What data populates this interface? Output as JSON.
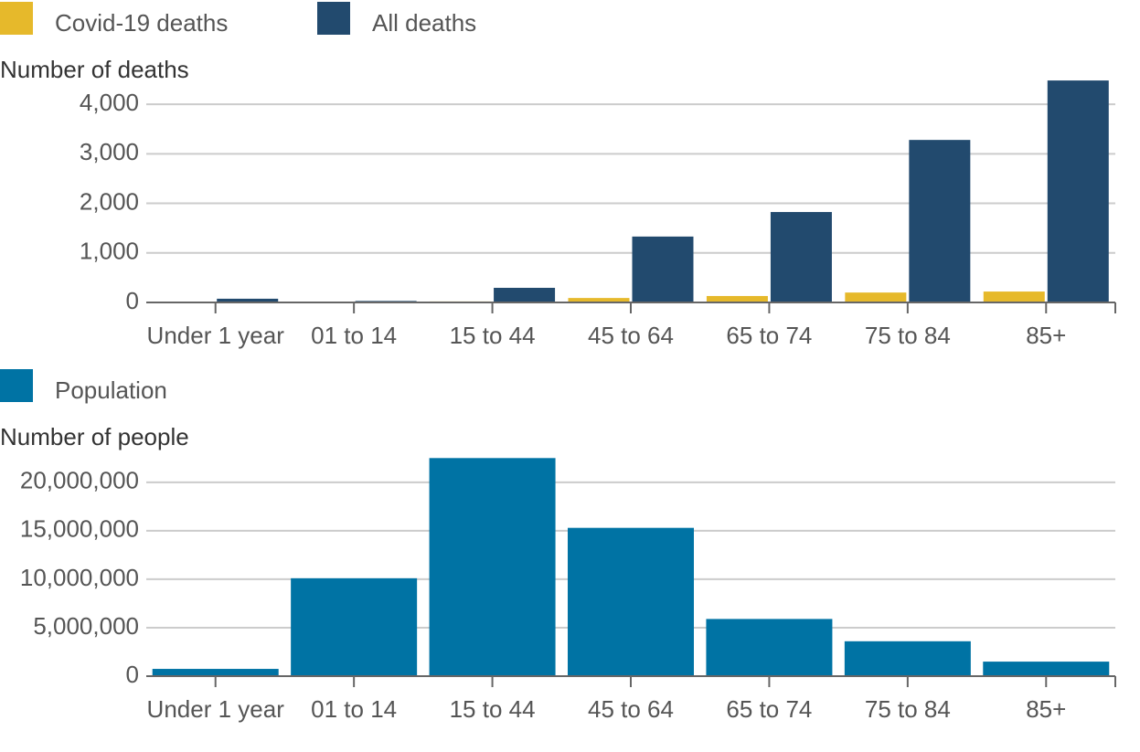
{
  "chart_data": [
    {
      "type": "bar",
      "y_label": "Number of deaths",
      "categories": [
        "Under 1 year",
        "01 to 14",
        "15 to 44",
        "45 to 64",
        "65 to 74",
        "75 to 84",
        "85+"
      ],
      "series": [
        {
          "name": "Covid-19 deaths",
          "color": "#e6b92b",
          "values": [
            2,
            3,
            20,
            90,
            130,
            200,
            220
          ]
        },
        {
          "name": "All deaths",
          "color": "#224a6e",
          "values": [
            75,
            30,
            295,
            1330,
            1825,
            3280,
            4480
          ]
        }
      ],
      "ylim": [
        0,
        4500
      ],
      "yticks": [
        0,
        {
          "value": 1000,
          "label": "1,000"
        },
        {
          "value": 2000,
          "label": "2,000"
        },
        {
          "value": 3000,
          "label": "3,000"
        },
        {
          "value": 4000,
          "label": "4,000"
        }
      ],
      "grid": true,
      "legend": "top-left"
    },
    {
      "type": "bar",
      "y_label": "Number of people",
      "categories": [
        "Under 1 year",
        "01 to 14",
        "15 to 44",
        "45 to 64",
        "65 to 74",
        "75 to 84",
        "85+"
      ],
      "series": [
        {
          "name": "Population",
          "color": "#0073a4",
          "values": [
            750000,
            10100000,
            22500000,
            15300000,
            5900000,
            3600000,
            1500000
          ]
        }
      ],
      "ylim": [
        0,
        23000000
      ],
      "yticks": [
        0,
        {
          "value": 5000000,
          "label": "5,000,000"
        },
        {
          "value": 10000000,
          "label": "10,000,000"
        },
        {
          "value": 15000000,
          "label": "15,000,000"
        },
        {
          "value": 20000000,
          "label": "20,000,000"
        }
      ],
      "grid": true,
      "legend": "top-left"
    }
  ]
}
